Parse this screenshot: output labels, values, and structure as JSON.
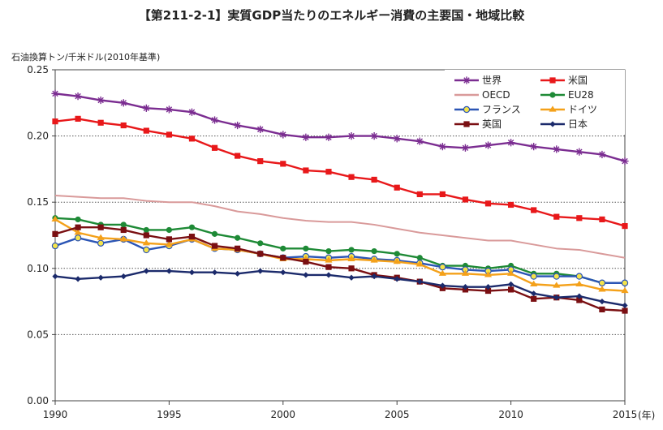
{
  "title": "【第211-2-1】実質GDP当たりのエネルギー消費の主要国・地域比較",
  "y_unit_label": "石油換算トン/千米ドル(2010年基準)",
  "x_unit_label": "(年)",
  "chart_data": {
    "type": "line",
    "x": [
      1990,
      1991,
      1992,
      1993,
      1994,
      1995,
      1996,
      1997,
      1998,
      1999,
      2000,
      2001,
      2002,
      2003,
      2004,
      2005,
      2006,
      2007,
      2008,
      2009,
      2010,
      2011,
      2012,
      2013,
      2014,
      2015
    ],
    "xlim": [
      1990,
      2015
    ],
    "ylim": [
      0,
      0.25
    ],
    "x_ticks": [
      1990,
      1995,
      2000,
      2005,
      2010,
      2015
    ],
    "x_tick_labels": [
      "1990",
      "1995",
      "2000",
      "2005",
      "2010",
      "2015"
    ],
    "y_ticks": [
      0,
      0.05,
      0.1,
      0.15,
      0.2,
      0.25
    ],
    "y_tick_labels": [
      "0.00",
      "0.05",
      "0.10",
      "0.15",
      "0.20",
      "0.25"
    ],
    "grid": "horizontal dotted",
    "legend_position": "top-right",
    "series": [
      {
        "name": "世界",
        "color": "#7b2d91",
        "marker": "star",
        "values": [
          0.232,
          0.23,
          0.227,
          0.225,
          0.221,
          0.22,
          0.218,
          0.212,
          0.208,
          0.205,
          0.201,
          0.199,
          0.199,
          0.2,
          0.2,
          0.198,
          0.196,
          0.192,
          0.191,
          0.193,
          0.195,
          0.192,
          0.19,
          0.188,
          0.186,
          0.181
        ]
      },
      {
        "name": "米国",
        "color": "#e8181a",
        "marker": "square",
        "values": [
          0.211,
          0.213,
          0.21,
          0.208,
          0.204,
          0.201,
          0.198,
          0.191,
          0.185,
          0.181,
          0.179,
          0.174,
          0.173,
          0.169,
          0.167,
          0.161,
          0.156,
          0.156,
          0.152,
          0.149,
          0.148,
          0.144,
          0.139,
          0.138,
          0.137,
          0.132
        ]
      },
      {
        "name": "OECD",
        "color": "#d99a9a",
        "marker": "none",
        "values": [
          0.155,
          0.154,
          0.153,
          0.153,
          0.151,
          0.15,
          0.15,
          0.147,
          0.143,
          0.141,
          0.138,
          0.136,
          0.135,
          0.135,
          0.133,
          0.13,
          0.127,
          0.125,
          0.123,
          0.121,
          0.121,
          0.118,
          0.115,
          0.114,
          0.111,
          0.108
        ]
      },
      {
        "name": "EU28",
        "color": "#1e8a36",
        "marker": "circle",
        "values": [
          0.138,
          0.137,
          0.133,
          0.133,
          0.129,
          0.129,
          0.131,
          0.126,
          0.123,
          0.119,
          0.115,
          0.115,
          0.113,
          0.114,
          0.113,
          0.111,
          0.108,
          0.102,
          0.102,
          0.1,
          0.102,
          0.096,
          0.096,
          0.094,
          0.089,
          0.089
        ]
      },
      {
        "name": "フランス",
        "color": "#2b55b5",
        "marker": "circle-yellow",
        "values": [
          0.117,
          0.123,
          0.119,
          0.122,
          0.114,
          0.117,
          0.122,
          0.115,
          0.114,
          0.111,
          0.108,
          0.109,
          0.108,
          0.109,
          0.107,
          0.106,
          0.104,
          0.101,
          0.099,
          0.098,
          0.099,
          0.094,
          0.094,
          0.094,
          0.089,
          0.089
        ]
      },
      {
        "name": "ドイツ",
        "color": "#f4a11a",
        "marker": "triangle",
        "values": [
          0.137,
          0.127,
          0.123,
          0.122,
          0.119,
          0.118,
          0.122,
          0.115,
          0.114,
          0.111,
          0.107,
          0.107,
          0.106,
          0.107,
          0.106,
          0.105,
          0.103,
          0.096,
          0.096,
          0.095,
          0.096,
          0.088,
          0.087,
          0.088,
          0.084,
          0.083
        ]
      },
      {
        "name": "英国",
        "color": "#7a0f12",
        "marker": "square",
        "values": [
          0.126,
          0.131,
          0.131,
          0.129,
          0.125,
          0.122,
          0.124,
          0.117,
          0.115,
          0.111,
          0.108,
          0.105,
          0.101,
          0.1,
          0.095,
          0.093,
          0.09,
          0.085,
          0.084,
          0.083,
          0.084,
          0.077,
          0.078,
          0.076,
          0.069,
          0.068
        ]
      },
      {
        "name": "日本",
        "color": "#1b2a6b",
        "marker": "diamond",
        "values": [
          0.094,
          0.092,
          0.093,
          0.094,
          0.098,
          0.098,
          0.097,
          0.097,
          0.096,
          0.098,
          0.097,
          0.095,
          0.095,
          0.093,
          0.094,
          0.092,
          0.09,
          0.087,
          0.086,
          0.086,
          0.088,
          0.081,
          0.078,
          0.079,
          0.075,
          0.072
        ]
      }
    ]
  }
}
